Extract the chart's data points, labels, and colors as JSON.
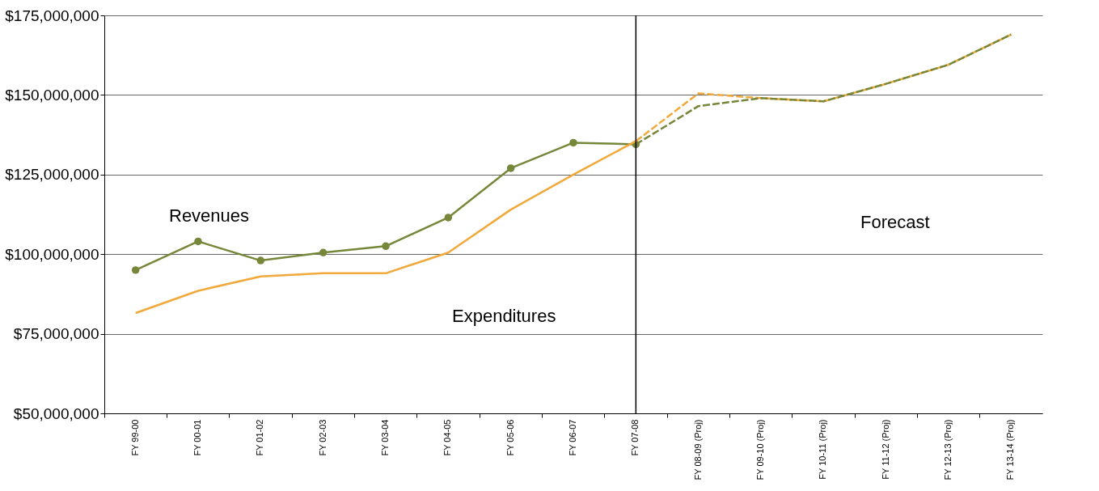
{
  "chart_data": {
    "type": "line",
    "categories": [
      "FY 99-00",
      "FY 00-01",
      "FY 01-02",
      "FY 02-03",
      "FY 03-04",
      "FY 04-05",
      "FY 05-06",
      "FY 06-07",
      "FY 07-08",
      "FY 08-09 (Proj)",
      "FY 09-10 (Proj)",
      "FY 10-11 (Proj)",
      "FY 11-12 (Proj)",
      "FY 12-13 (Proj)",
      "FY 13-14 (Proj)"
    ],
    "series": [
      {
        "color": "#77873a",
        "line_style": "solid",
        "marker": "circle",
        "values": [
          95000000,
          104000000,
          98000000,
          100500000,
          102500000,
          111500000,
          127000000,
          135000000,
          134500000,
          null,
          null,
          null,
          null,
          null,
          null
        ]
      },
      {
        "color": "#f0a93a",
        "line_style": "solid",
        "marker": "none",
        "values": [
          81500000,
          88500000,
          93000000,
          94000000,
          94000000,
          100500000,
          114000000,
          125000000,
          135500000,
          null,
          null,
          null,
          null,
          null,
          null
        ]
      },
      {
        "color": "#f0a93a",
        "line_style": "dashed",
        "marker": "none",
        "values": [
          null,
          null,
          null,
          null,
          null,
          null,
          null,
          null,
          135500000,
          150500000,
          149000000,
          148000000,
          153500000,
          159500000,
          169000000
        ]
      },
      {
        "color": "#77873a",
        "line_style": "dashed",
        "marker": "none",
        "values": [
          null,
          null,
          null,
          null,
          null,
          null,
          null,
          null,
          134500000,
          146500000,
          149000000,
          148000000,
          153500000,
          159500000,
          169000000
        ]
      }
    ],
    "ylim": [
      50000000,
      175000000
    ],
    "yticks": [
      {
        "value": 50000000,
        "label": "$50,000,000"
      },
      {
        "value": 75000000,
        "label": "$75,000,000"
      },
      {
        "value": 100000000,
        "label": "$100,000,000"
      },
      {
        "value": 125000000,
        "label": "$125,000,000"
      },
      {
        "value": 150000000,
        "label": "$150,000,000"
      },
      {
        "value": 175000000,
        "label": "$175,000,000"
      }
    ],
    "grid": "y",
    "ref_lines": [
      {
        "axis": "x",
        "value": "FY 07-08",
        "color": "#000000"
      }
    ],
    "annotations": [
      "Revenues",
      "Expenditures",
      "Forecast"
    ]
  }
}
